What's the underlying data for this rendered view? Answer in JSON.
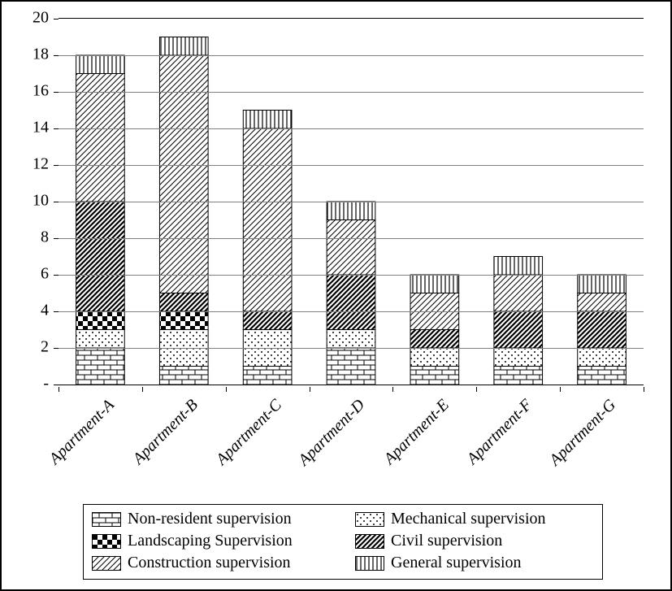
{
  "chart": {
    "type": "stacked-bar",
    "background_color": "#ffffff",
    "grid_color": "#808080",
    "border_color": "#000000",
    "ylim": [
      0,
      20
    ],
    "ytick_step": 2,
    "ytick_labels": [
      "-",
      "2",
      "4",
      "6",
      "8",
      "10",
      "12",
      "14",
      "16",
      "18",
      "20"
    ],
    "label_fontsize": 20,
    "categories": [
      "Apartment-A",
      "Apartment-B",
      "Apartment-C",
      "Apartment-D",
      "Apartment-E",
      "Apartment-F",
      "Apartment-G"
    ],
    "series": [
      {
        "key": "non_resident",
        "label": "Non-resident supervision",
        "pattern": "brick"
      },
      {
        "key": "mechanical",
        "label": "Mechanical supervision",
        "pattern": "dots"
      },
      {
        "key": "landscaping",
        "label": "Landscaping Supervision",
        "pattern": "checker"
      },
      {
        "key": "civil",
        "label": "Civil supervision",
        "pattern": "diag_dark"
      },
      {
        "key": "construction",
        "label": "Construction supervision",
        "pattern": "diag_light"
      },
      {
        "key": "general",
        "label": "General supervision",
        "pattern": "vert"
      }
    ],
    "data": {
      "Apartment-A": {
        "non_resident": 2,
        "mechanical": 1,
        "landscaping": 1,
        "civil": 6,
        "construction": 7,
        "general": 1
      },
      "Apartment-B": {
        "non_resident": 1,
        "mechanical": 2,
        "landscaping": 1,
        "civil": 1,
        "construction": 13,
        "general": 1
      },
      "Apartment-C": {
        "non_resident": 1,
        "mechanical": 2,
        "landscaping": 0,
        "civil": 1,
        "construction": 10,
        "general": 1
      },
      "Apartment-D": {
        "non_resident": 2,
        "mechanical": 1,
        "landscaping": 0,
        "civil": 3,
        "construction": 3,
        "general": 1
      },
      "Apartment-E": {
        "non_resident": 1,
        "mechanical": 1,
        "landscaping": 0,
        "civil": 1,
        "construction": 2,
        "general": 1
      },
      "Apartment-F": {
        "non_resident": 1,
        "mechanical": 1,
        "landscaping": 0,
        "civil": 2,
        "construction": 2,
        "general": 1
      },
      "Apartment-G": {
        "non_resident": 1,
        "mechanical": 1,
        "landscaping": 0,
        "civil": 2,
        "construction": 1,
        "general": 1
      }
    },
    "bar_width_ratio": 0.58
  }
}
